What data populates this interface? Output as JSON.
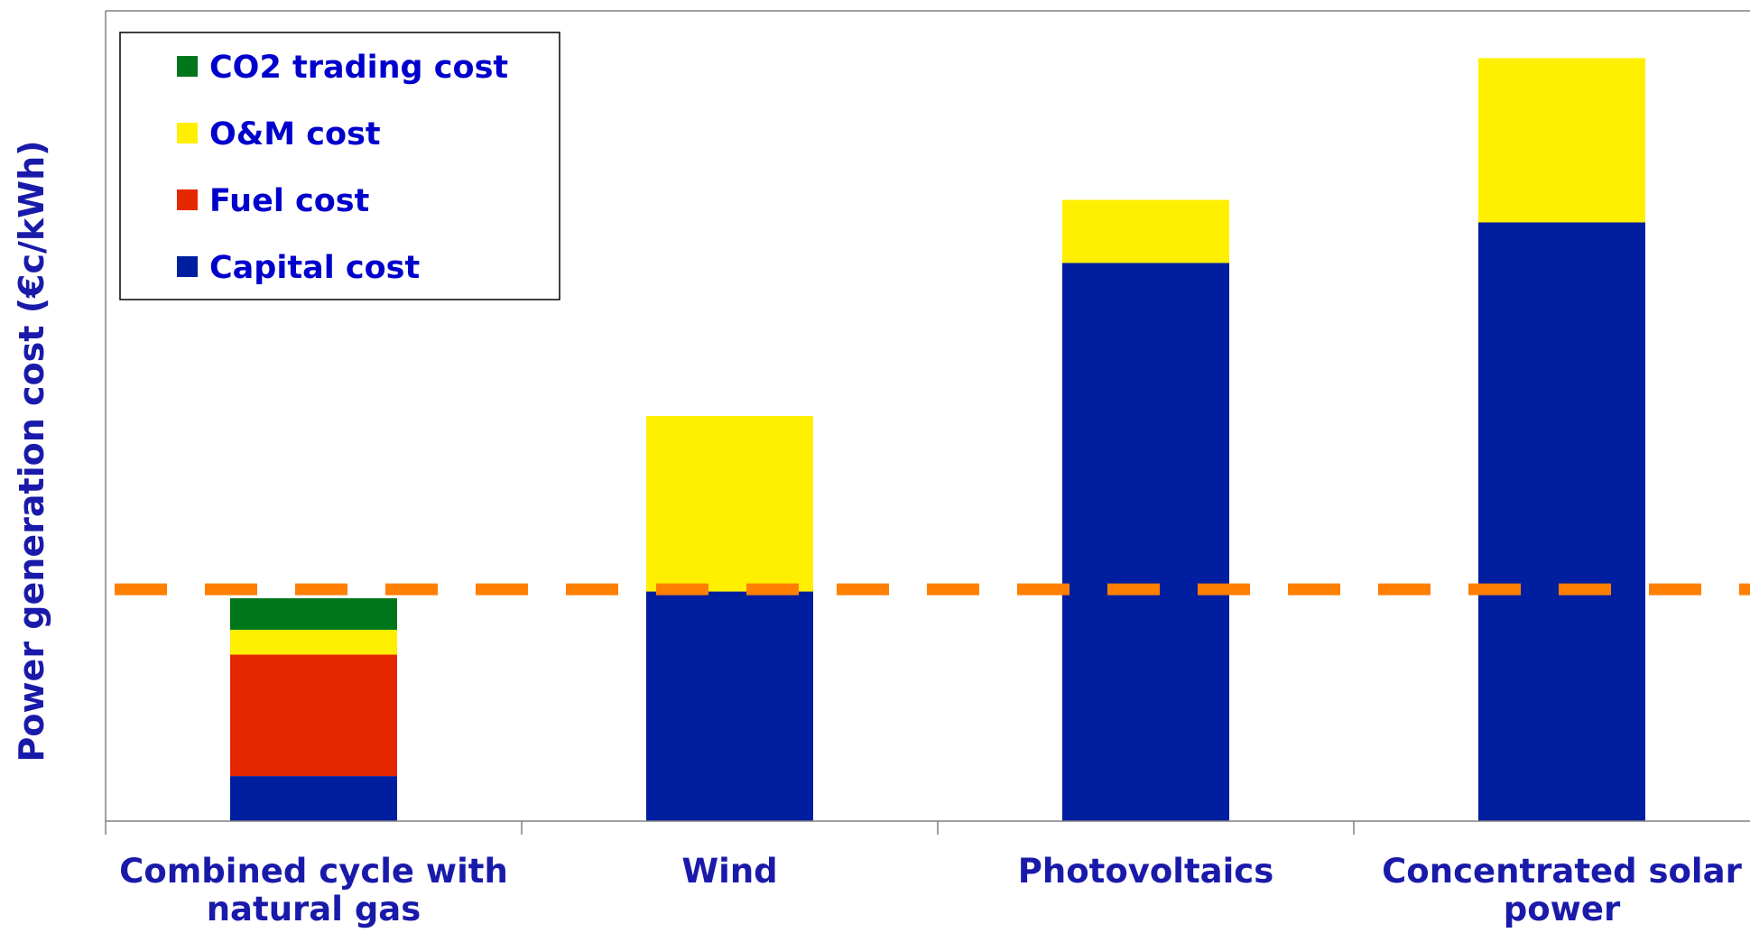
{
  "chart_data": {
    "type": "bar",
    "stacked": true,
    "title": "",
    "xlabel": "",
    "ylabel": "Power generation cost (€c/kWh)",
    "y_ticks_shown": false,
    "ylim": [
      0,
      18
    ],
    "grid": false,
    "legend_position": "top-left",
    "categories": [
      [
        "Combined cycle with",
        "natural gas"
      ],
      [
        "Wind"
      ],
      [
        "Photovoltaics"
      ],
      [
        "Concentrated solar",
        "power"
      ]
    ],
    "series": [
      {
        "name": "Capital cost",
        "color": "#001ea0",
        "values": [
          1.0,
          5.1,
          12.4,
          13.3
        ]
      },
      {
        "name": "Fuel cost",
        "color": "#e52800",
        "values": [
          2.7,
          0,
          0,
          0
        ]
      },
      {
        "name": "O&M cost",
        "color": "#ffef00",
        "values": [
          0.55,
          3.9,
          1.4,
          3.65
        ]
      },
      {
        "name": "CO2 trading cost",
        "color": "#00761b",
        "values": [
          0.7,
          0,
          0,
          0
        ]
      }
    ],
    "reference_line": {
      "value": 5.15,
      "style": "dashed",
      "color": "#ff7f00"
    },
    "legend_order": [
      "CO2 trading cost",
      "O&M cost",
      "Fuel cost",
      "Capital cost"
    ],
    "colors": {
      "axis": "#808080",
      "label_text": "#1a1aaa",
      "legend_text": "#0000cc",
      "legend_border": "#000000"
    }
  }
}
